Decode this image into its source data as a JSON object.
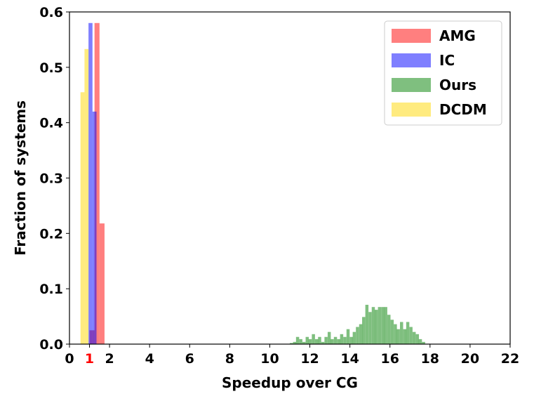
{
  "chart_data": {
    "type": "bar",
    "title": "",
    "xlabel": "Speedup over CG",
    "ylabel": "Fraction of systems",
    "xlim": [
      0,
      22
    ],
    "ylim": [
      0,
      0.6
    ],
    "x_ticks": [
      "0",
      "1",
      "2",
      "4",
      "6",
      "8",
      "10",
      "12",
      "14",
      "16",
      "18",
      "20",
      "22"
    ],
    "x_tick_values": [
      0,
      1,
      2,
      4,
      6,
      8,
      10,
      12,
      14,
      16,
      18,
      20,
      22
    ],
    "x_tick_colors": [
      "#000000",
      "#ff0000",
      "#000000",
      "#000000",
      "#000000",
      "#000000",
      "#000000",
      "#000000",
      "#000000",
      "#000000",
      "#000000",
      "#000000",
      "#000000"
    ],
    "y_ticks": [
      "0.0",
      "0.1",
      "0.2",
      "0.3",
      "0.4",
      "0.5",
      "0.6"
    ],
    "y_tick_values": [
      0,
      0.1,
      0.2,
      0.3,
      0.4,
      0.5,
      0.6
    ],
    "grid": false,
    "legend_position": "top-right",
    "series": [
      {
        "name": "AMG",
        "color": "#ff0000",
        "opacity": 0.5,
        "bin_width": 0.25,
        "bins": [
          {
            "x": 1.0,
            "y": 0.025
          },
          {
            "x": 1.25,
            "y": 0.58
          },
          {
            "x": 1.5,
            "y": 0.218
          }
        ]
      },
      {
        "name": "IC",
        "color": "#0000ff",
        "opacity": 0.5,
        "bin_width": 0.2,
        "bins": [
          {
            "x": 0.75,
            "y": 0.0
          },
          {
            "x": 0.95,
            "y": 0.58
          },
          {
            "x": 1.15,
            "y": 0.42
          },
          {
            "x": 1.35,
            "y": 0.0
          }
        ]
      },
      {
        "name": "Ours",
        "color": "#008000",
        "opacity": 0.5,
        "bin_width": 0.157,
        "bins": [
          {
            "x": 11.0,
            "y": 0.002
          },
          {
            "x": 11.16,
            "y": 0.004
          },
          {
            "x": 11.31,
            "y": 0.013
          },
          {
            "x": 11.47,
            "y": 0.009
          },
          {
            "x": 11.63,
            "y": 0.004
          },
          {
            "x": 11.79,
            "y": 0.013
          },
          {
            "x": 11.94,
            "y": 0.009
          },
          {
            "x": 12.1,
            "y": 0.018
          },
          {
            "x": 12.26,
            "y": 0.009
          },
          {
            "x": 12.41,
            "y": 0.013
          },
          {
            "x": 12.57,
            "y": 0.004
          },
          {
            "x": 12.73,
            "y": 0.013
          },
          {
            "x": 12.89,
            "y": 0.022
          },
          {
            "x": 13.04,
            "y": 0.009
          },
          {
            "x": 13.2,
            "y": 0.013
          },
          {
            "x": 13.36,
            "y": 0.009
          },
          {
            "x": 13.51,
            "y": 0.018
          },
          {
            "x": 13.67,
            "y": 0.013
          },
          {
            "x": 13.83,
            "y": 0.027
          },
          {
            "x": 13.99,
            "y": 0.013
          },
          {
            "x": 14.14,
            "y": 0.022
          },
          {
            "x": 14.3,
            "y": 0.031
          },
          {
            "x": 14.46,
            "y": 0.036
          },
          {
            "x": 14.61,
            "y": 0.049
          },
          {
            "x": 14.77,
            "y": 0.071
          },
          {
            "x": 14.93,
            "y": 0.058
          },
          {
            "x": 15.09,
            "y": 0.067
          },
          {
            "x": 15.24,
            "y": 0.062
          },
          {
            "x": 15.4,
            "y": 0.067
          },
          {
            "x": 15.56,
            "y": 0.067
          },
          {
            "x": 15.71,
            "y": 0.067
          },
          {
            "x": 15.87,
            "y": 0.053
          },
          {
            "x": 16.03,
            "y": 0.044
          },
          {
            "x": 16.19,
            "y": 0.036
          },
          {
            "x": 16.34,
            "y": 0.027
          },
          {
            "x": 16.5,
            "y": 0.04
          },
          {
            "x": 16.66,
            "y": 0.027
          },
          {
            "x": 16.81,
            "y": 0.04
          },
          {
            "x": 16.97,
            "y": 0.031
          },
          {
            "x": 17.13,
            "y": 0.022
          },
          {
            "x": 17.29,
            "y": 0.018
          },
          {
            "x": 17.44,
            "y": 0.009
          },
          {
            "x": 17.6,
            "y": 0.004
          }
        ]
      },
      {
        "name": "DCDM",
        "color": "#ffd700",
        "opacity": 0.5,
        "bin_width": 0.2,
        "bins": [
          {
            "x": 0.55,
            "y": 0.455
          },
          {
            "x": 0.75,
            "y": 0.533
          },
          {
            "x": 0.95,
            "y": 0.0
          }
        ]
      }
    ]
  }
}
